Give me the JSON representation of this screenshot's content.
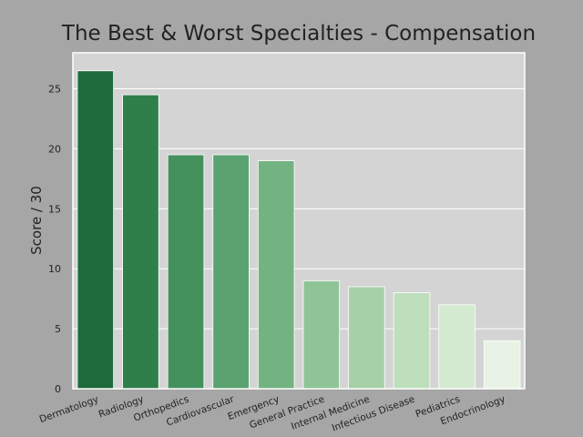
{
  "chart_data": {
    "type": "bar",
    "title": "The Best & Worst Specialties - Compensation",
    "xlabel": "",
    "ylabel": "Score / 30",
    "ylim": [
      0,
      28
    ],
    "yticks": [
      0,
      5,
      10,
      15,
      20,
      25
    ],
    "grid": true,
    "categories": [
      "Dermatology",
      "Radiology",
      "Orthopedics",
      "Cardiovascular",
      "Emergency",
      "General Practice",
      "Internal Medicine",
      "Infectious Disease",
      "Pediatrics",
      "Endocrinology"
    ],
    "values": [
      26.5,
      24.5,
      19.5,
      19.5,
      19,
      9,
      8.5,
      8,
      7,
      4
    ],
    "colors": [
      "#1d6b3a",
      "#2f7f4b",
      "#44915d",
      "#5aa26f",
      "#73b382",
      "#8fc596",
      "#a6d1a8",
      "#bddfbc",
      "#d4ebd1",
      "#e8f3e5"
    ],
    "background": "#a6a6a6",
    "plot_background": "#d4d4d4",
    "grid_color": "#ffffff"
  }
}
